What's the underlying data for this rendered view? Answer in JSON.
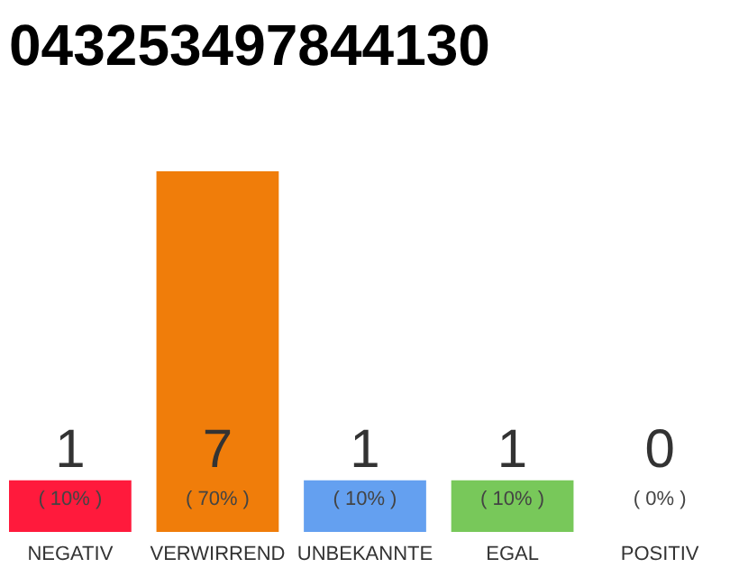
{
  "chart_data": {
    "type": "bar",
    "title": "043253497844130",
    "categories": [
      "NEGATIV",
      "VERWIRREND",
      "UNBEKANNTE",
      "EGAL",
      "POSITIV"
    ],
    "values": [
      1,
      7,
      1,
      1,
      0
    ],
    "colors": [
      "#ff1a3c",
      "#f07d0a",
      "#64a0f0",
      "#78c85a",
      "#d9d9d9"
    ],
    "tick_labels": "x",
    "value_labels": [
      "1",
      "7",
      "1",
      "1",
      "0"
    ],
    "annotations": [
      "( 10% )",
      "( 70% )",
      "( 10% )",
      "( 10% )",
      "( 0% )"
    ]
  }
}
